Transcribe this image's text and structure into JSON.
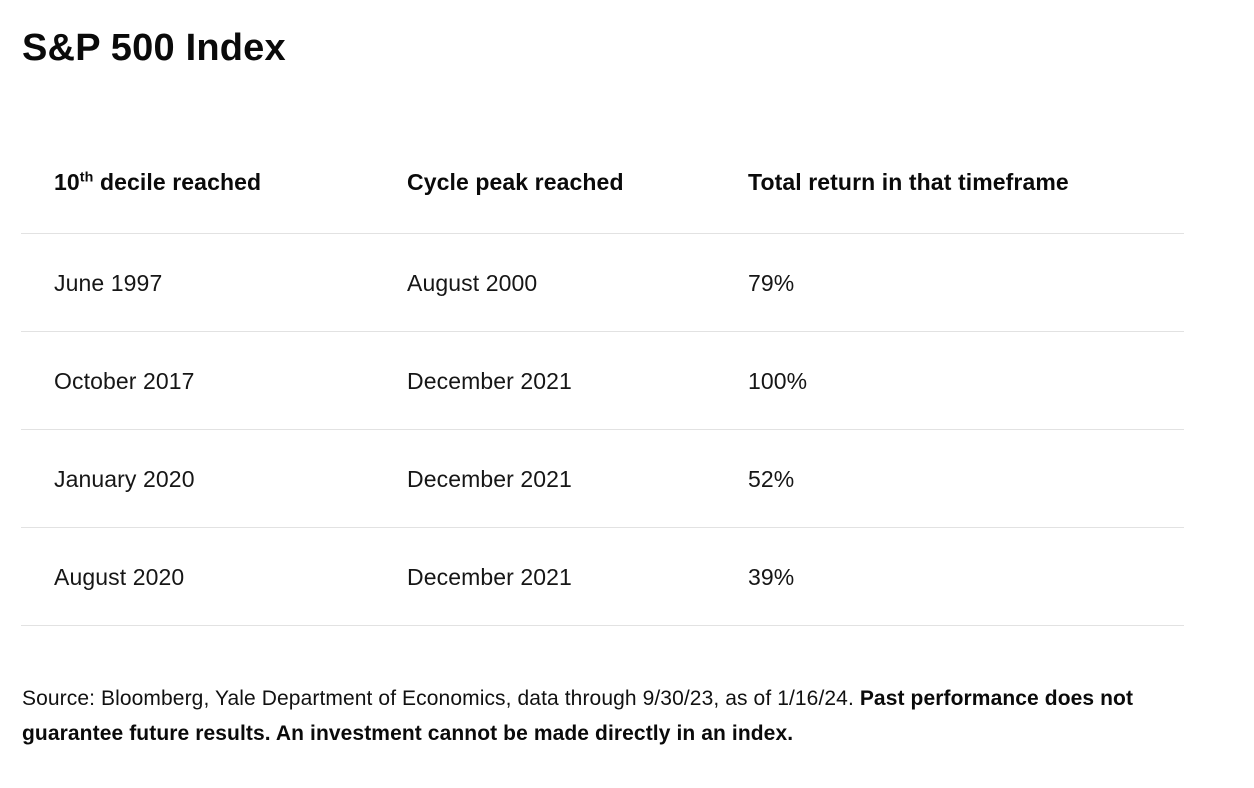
{
  "page": {
    "background_color": "#ffffff",
    "text_color": "#111111",
    "divider_color": "#e2e2e2"
  },
  "title": "S&P 500 Index",
  "table": {
    "columns": [
      {
        "label_prefix": "10",
        "label_sup": "th",
        "label_rest": " decile reached"
      },
      {
        "label": "Cycle peak reached"
      },
      {
        "label": "Total return in that timeframe"
      }
    ],
    "rows": [
      {
        "decile_reached": "June 1997",
        "cycle_peak": "August 2000",
        "total_return": "79%"
      },
      {
        "decile_reached": "October 2017",
        "cycle_peak": "December 2021",
        "total_return": "100%"
      },
      {
        "decile_reached": "January 2020",
        "cycle_peak": "December 2021",
        "total_return": "52%"
      },
      {
        "decile_reached": "August 2020",
        "cycle_peak": "December 2021",
        "total_return": "39%"
      }
    ]
  },
  "footer": {
    "source_text": "Source: Bloomberg, Yale Department of Economics, data through 9/30/23, as of 1/16/24. ",
    "disclaimer_bold": "Past performance does not guarantee future results. An investment cannot be made directly in an index."
  },
  "chart_data": {
    "type": "table",
    "title": "S&P 500 Index",
    "columns": [
      "10th decile reached",
      "Cycle peak reached",
      "Total return in that timeframe"
    ],
    "rows": [
      [
        "June 1997",
        "August 2000",
        "79%"
      ],
      [
        "October 2017",
        "December 2021",
        "100%"
      ],
      [
        "January 2020",
        "December 2021",
        "52%"
      ],
      [
        "August 2020",
        "December 2021",
        "39%"
      ]
    ],
    "source_note": "Source: Bloomberg, Yale Department of Economics, data through 9/30/23, as of 1/16/24. Past performance does not guarantee future results. An investment cannot be made directly in an index."
  }
}
